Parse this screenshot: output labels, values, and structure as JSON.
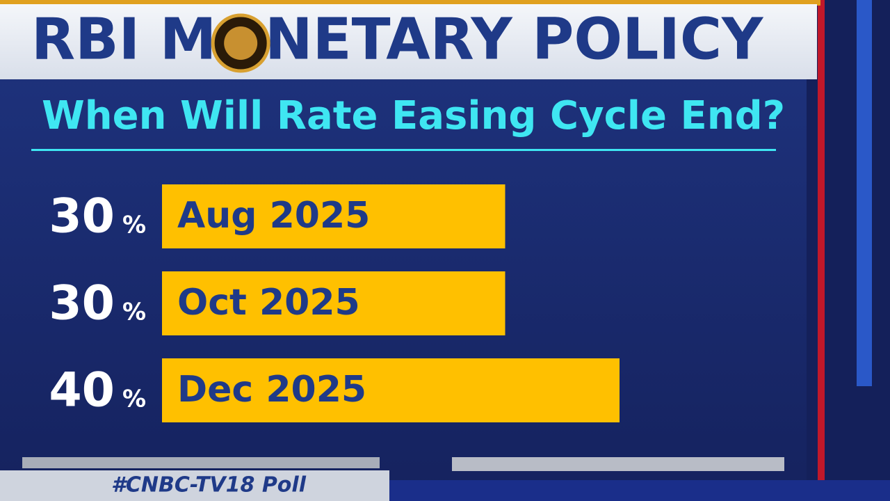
{
  "chart_data": {
    "type": "bar",
    "orientation": "horizontal",
    "title": "RBI MONETARY POLICY",
    "subtitle": "When Will Rate Easing Cycle End?",
    "categories": [
      "Aug 2025",
      "Oct 2025",
      "Dec 2025"
    ],
    "values": [
      30,
      30,
      40
    ],
    "unit": "%",
    "color": "#ffc000",
    "xlim": [
      0,
      40
    ],
    "footer": "#CNBC-TV18 Poll"
  }
}
